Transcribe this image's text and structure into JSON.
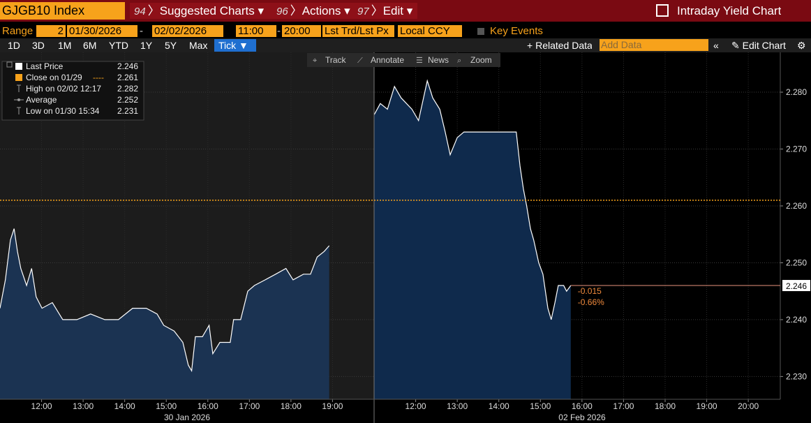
{
  "header": {
    "ticker": "GJGB10 Index",
    "menus": [
      {
        "code": "94",
        "label": "Suggested Charts"
      },
      {
        "code": "96",
        "label": "Actions"
      },
      {
        "code": "97",
        "label": "Edit"
      }
    ],
    "title": "Intraday Yield Chart"
  },
  "controls": {
    "range_label": "Range",
    "range_value": "2",
    "start_date": "01/30/2026",
    "end_date": "02/02/2026",
    "start_time": "11:00",
    "end_time": "20:00",
    "price_type": "Lst Trd/Lst Px",
    "currency": "Local CCY",
    "key_events": "Key Events"
  },
  "periods": [
    "1D",
    "3D",
    "1M",
    "6M",
    "YTD",
    "1Y",
    "5Y",
    "Max",
    "Tick"
  ],
  "actions": {
    "related": "Related Data",
    "add_placeholder": "Add Data",
    "edit_chart": "Edit Chart"
  },
  "tools": [
    "Track",
    "Annotate",
    "News",
    "Zoom"
  ],
  "chart_data": {
    "type": "area",
    "grid": true,
    "line_color": "#ffffff",
    "ylim": [
      2.226,
      2.287
    ],
    "yticks": [
      {
        "value": 2.23,
        "label": "2.230"
      },
      {
        "value": 2.24,
        "label": "2.240"
      },
      {
        "value": 2.25,
        "label": "2.250"
      },
      {
        "value": 2.26,
        "label": "2.260"
      },
      {
        "value": 2.27,
        "label": "2.270"
      },
      {
        "value": 2.28,
        "label": "2.280"
      }
    ],
    "legend": [
      {
        "label": "Last Price",
        "value": 2.246
      },
      {
        "label": "Close on 01/29",
        "value": 2.261
      },
      {
        "label": "High on 02/02 12:17",
        "value": 2.282
      },
      {
        "label": "Average",
        "value": 2.252
      },
      {
        "label": "Low on 01/30 15:34",
        "value": 2.231
      }
    ],
    "change_labels": [
      "-0.015",
      "-0.66%"
    ],
    "panels": [
      {
        "date": "30 Jan 2026",
        "fill": "#1b3352",
        "background": "#1c1c1c",
        "xlim": [
          11,
          20
        ],
        "xticks": [
          {
            "value": 12,
            "label": "12:00"
          },
          {
            "value": 13,
            "label": "13:00"
          },
          {
            "value": 14,
            "label": "14:00"
          },
          {
            "value": 15,
            "label": "15:00"
          },
          {
            "value": 16,
            "label": "16:00"
          },
          {
            "value": 17,
            "label": "17:00"
          },
          {
            "value": 18,
            "label": "18:00"
          },
          {
            "value": 19,
            "label": "19:00"
          }
        ],
        "x": [
          11.0,
          11.13,
          11.25,
          11.34,
          11.42,
          11.5,
          11.64,
          11.76,
          11.87,
          12.01,
          12.26,
          12.51,
          12.85,
          13.18,
          13.52,
          13.85,
          14.19,
          14.52,
          14.78,
          14.94,
          15.19,
          15.4,
          15.53,
          15.61,
          15.7,
          15.87,
          16.03,
          16.12,
          16.29,
          16.54,
          16.62,
          16.79,
          16.96,
          17.12,
          17.38,
          17.63,
          17.88,
          18.05,
          18.3,
          18.47,
          18.63,
          18.8,
          18.92
        ],
        "values": [
          2.242,
          2.247,
          2.254,
          2.256,
          2.252,
          2.249,
          2.246,
          2.249,
          2.244,
          2.242,
          2.243,
          2.24,
          2.24,
          2.241,
          2.24,
          2.24,
          2.242,
          2.242,
          2.241,
          2.239,
          2.238,
          2.236,
          2.232,
          2.231,
          2.237,
          2.237,
          2.239,
          2.234,
          2.236,
          2.236,
          2.24,
          2.24,
          2.245,
          2.246,
          2.247,
          2.248,
          2.249,
          2.247,
          2.248,
          2.248,
          2.251,
          2.252,
          2.253
        ]
      },
      {
        "date": "02 Feb 2026",
        "fill": "#0f2a4c",
        "background": "#000000",
        "xlim": [
          11,
          20.77
        ],
        "xticks": [
          {
            "value": 12,
            "label": "12:00"
          },
          {
            "value": 13,
            "label": "13:00"
          },
          {
            "value": 14,
            "label": "14:00"
          },
          {
            "value": 15,
            "label": "15:00"
          },
          {
            "value": 16,
            "label": "16:00"
          },
          {
            "value": 17,
            "label": "17:00"
          },
          {
            "value": 18,
            "label": "18:00"
          },
          {
            "value": 19,
            "label": "19:00"
          },
          {
            "value": 20,
            "label": "20:00"
          }
        ],
        "x": [
          11.0,
          11.15,
          11.32,
          11.49,
          11.65,
          11.91,
          12.07,
          12.28,
          12.41,
          12.58,
          12.71,
          12.83,
          13.0,
          13.16,
          13.42,
          13.75,
          14.42,
          14.51,
          14.59,
          14.67,
          14.76,
          14.84,
          14.96,
          15.06,
          15.18,
          15.26,
          15.35,
          15.43,
          15.56,
          15.63,
          15.73
        ],
        "values": [
          2.276,
          2.278,
          2.277,
          2.281,
          2.279,
          2.277,
          2.275,
          2.282,
          2.279,
          2.277,
          2.273,
          2.269,
          2.272,
          2.273,
          2.273,
          2.273,
          2.273,
          2.267,
          2.263,
          2.26,
          2.256,
          2.254,
          2.25,
          2.248,
          2.242,
          2.24,
          2.243,
          2.246,
          2.246,
          2.245,
          2.246
        ]
      }
    ]
  }
}
